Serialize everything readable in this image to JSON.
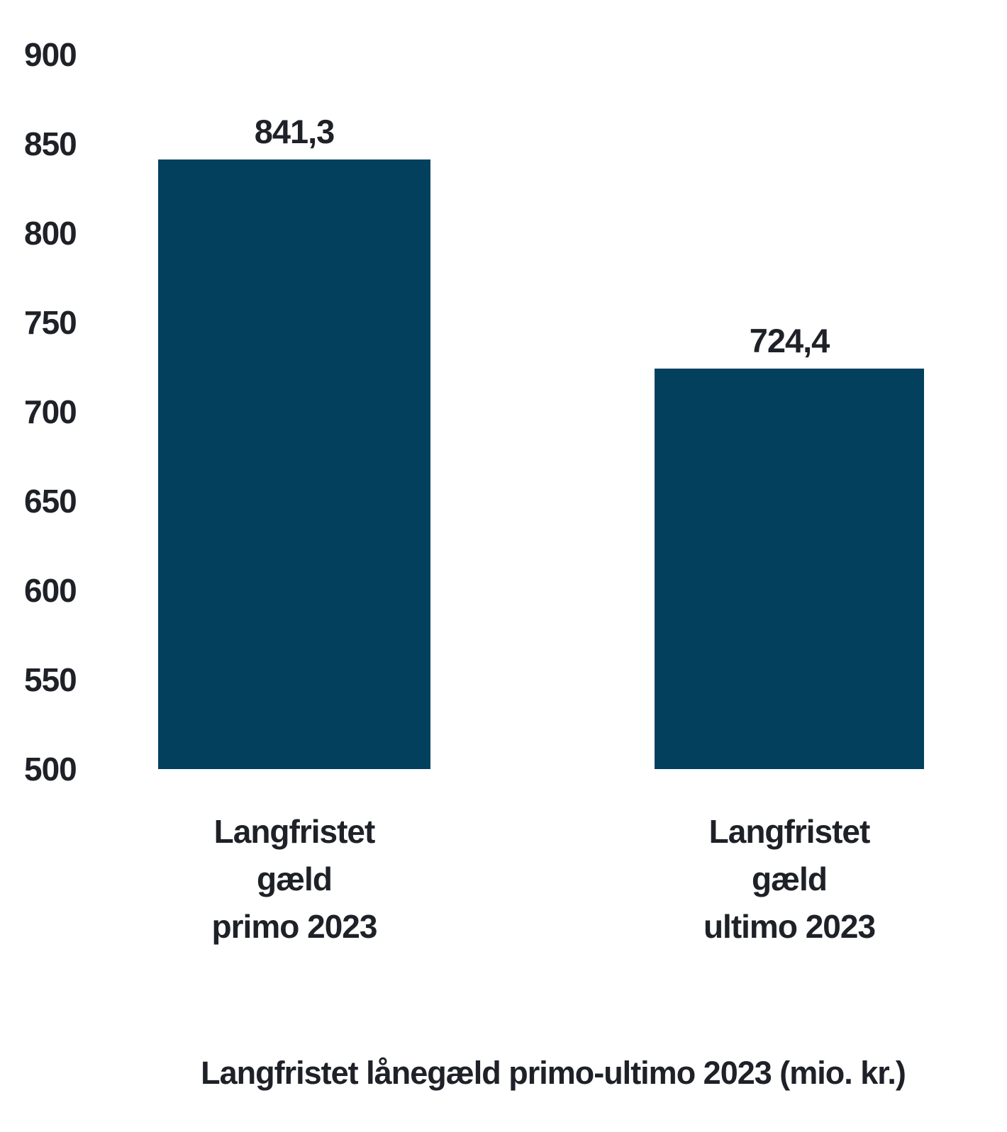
{
  "chart_data": {
    "type": "bar",
    "title": "Langfristet lånegæld primo-ultimo 2023 (mio. kr.)",
    "categories": [
      "Langfristet gæld primo 2023",
      "Langfristet gæld ultimo 2023"
    ],
    "category_lines": [
      [
        "Langfristet",
        "gæld",
        "primo 2023"
      ],
      [
        "Langfristet",
        "gæld",
        "ultimo 2023"
      ]
    ],
    "values": [
      841.3,
      724.4
    ],
    "value_labels": [
      "841,3",
      "724,4"
    ],
    "ylim": [
      500,
      900
    ],
    "ytick_step": 50,
    "yticks": [
      900,
      850,
      800,
      750,
      700,
      650,
      600,
      550,
      500
    ],
    "xlabel": "",
    "ylabel": "",
    "grid": false,
    "legend_position": "none",
    "bar_color": "#02405e",
    "text_color": "#1e2127",
    "background_color": "#ffffff"
  }
}
